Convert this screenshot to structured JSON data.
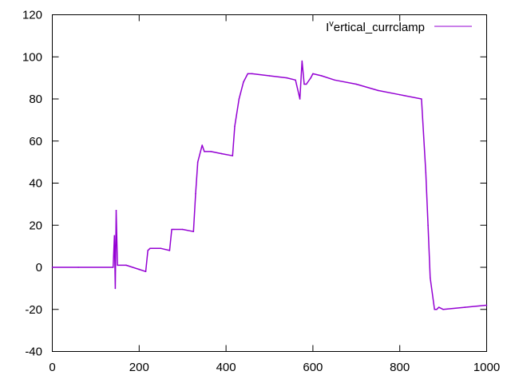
{
  "chart_data": {
    "type": "line",
    "title": "",
    "xlabel": "",
    "ylabel": "",
    "xlim": [
      0,
      1000
    ],
    "ylim": [
      -40,
      120
    ],
    "x_ticks": [
      0,
      200,
      400,
      600,
      800,
      1000
    ],
    "y_ticks": [
      -40,
      -20,
      0,
      20,
      40,
      60,
      80,
      100,
      120
    ],
    "grid": false,
    "legend_position": "top-right",
    "series": [
      {
        "name": "I^vertical_currclamp",
        "color": "#9400d3",
        "x": [
          0,
          60,
          140,
          143,
          145,
          147,
          150,
          170,
          200,
          215,
          220,
          225,
          250,
          270,
          275,
          280,
          300,
          325,
          330,
          335,
          345,
          350,
          365,
          390,
          415,
          420,
          430,
          440,
          450,
          460,
          500,
          540,
          560,
          570,
          575,
          580,
          585,
          595,
          600,
          620,
          650,
          700,
          750,
          800,
          850,
          860,
          865,
          870,
          880,
          885,
          890,
          900,
          950,
          1000
        ],
        "y": [
          0,
          0,
          0,
          15,
          -10,
          27,
          1,
          1,
          -1,
          -2,
          8,
          9,
          9,
          8,
          18,
          18,
          18,
          17,
          35,
          50,
          58,
          55,
          55,
          54,
          53,
          67,
          80,
          88,
          92,
          92,
          91,
          90,
          89,
          80,
          98,
          87,
          87,
          90,
          92,
          91,
          89,
          87,
          84,
          82,
          80,
          45,
          20,
          -5,
          -20,
          -20,
          -19,
          -20,
          -19,
          -18
        ]
      }
    ]
  },
  "legend": {
    "label_prefix": "I",
    "label_super": "v",
    "label_rest": "ertical_currclamp"
  }
}
